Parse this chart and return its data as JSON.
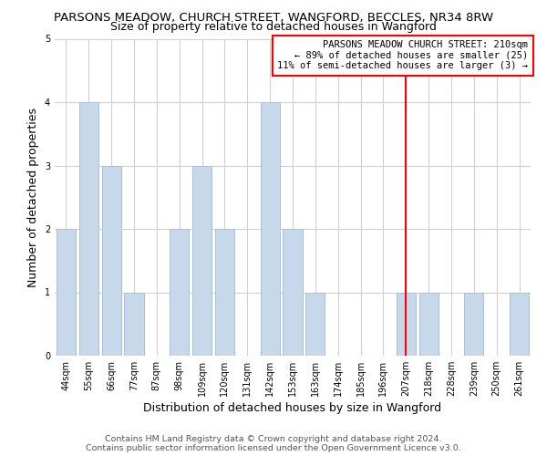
{
  "title": "PARSONS MEADOW, CHURCH STREET, WANGFORD, BECCLES, NR34 8RW",
  "subtitle": "Size of property relative to detached houses in Wangford",
  "xlabel": "Distribution of detached houses by size in Wangford",
  "ylabel": "Number of detached properties",
  "bar_labels": [
    "44sqm",
    "55sqm",
    "66sqm",
    "77sqm",
    "87sqm",
    "98sqm",
    "109sqm",
    "120sqm",
    "131sqm",
    "142sqm",
    "153sqm",
    "163sqm",
    "174sqm",
    "185sqm",
    "196sqm",
    "207sqm",
    "218sqm",
    "228sqm",
    "239sqm",
    "250sqm",
    "261sqm"
  ],
  "bar_values": [
    2,
    4,
    3,
    1,
    0,
    2,
    3,
    2,
    0,
    4,
    2,
    1,
    0,
    0,
    0,
    1,
    1,
    0,
    1,
    0,
    1
  ],
  "bar_color": "#c8d8eb",
  "bar_edge_color": "#a8c0d8",
  "reference_line_x": 15,
  "reference_line_color": "#ff0000",
  "annotation_box_text": "PARSONS MEADOW CHURCH STREET: 210sqm\n← 89% of detached houses are smaller (25)\n11% of semi-detached houses are larger (3) →",
  "ylim": [
    0,
    5
  ],
  "yticks": [
    0,
    1,
    2,
    3,
    4,
    5
  ],
  "footnote": "Contains HM Land Registry data © Crown copyright and database right 2024.\nContains public sector information licensed under the Open Government Licence v3.0.",
  "bg_color": "#ffffff",
  "grid_color": "#d0d0d0",
  "title_fontsize": 9.5,
  "subtitle_fontsize": 9,
  "axis_label_fontsize": 9,
  "tick_fontsize": 7,
  "annotation_fontsize": 7.5,
  "footnote_fontsize": 6.8
}
